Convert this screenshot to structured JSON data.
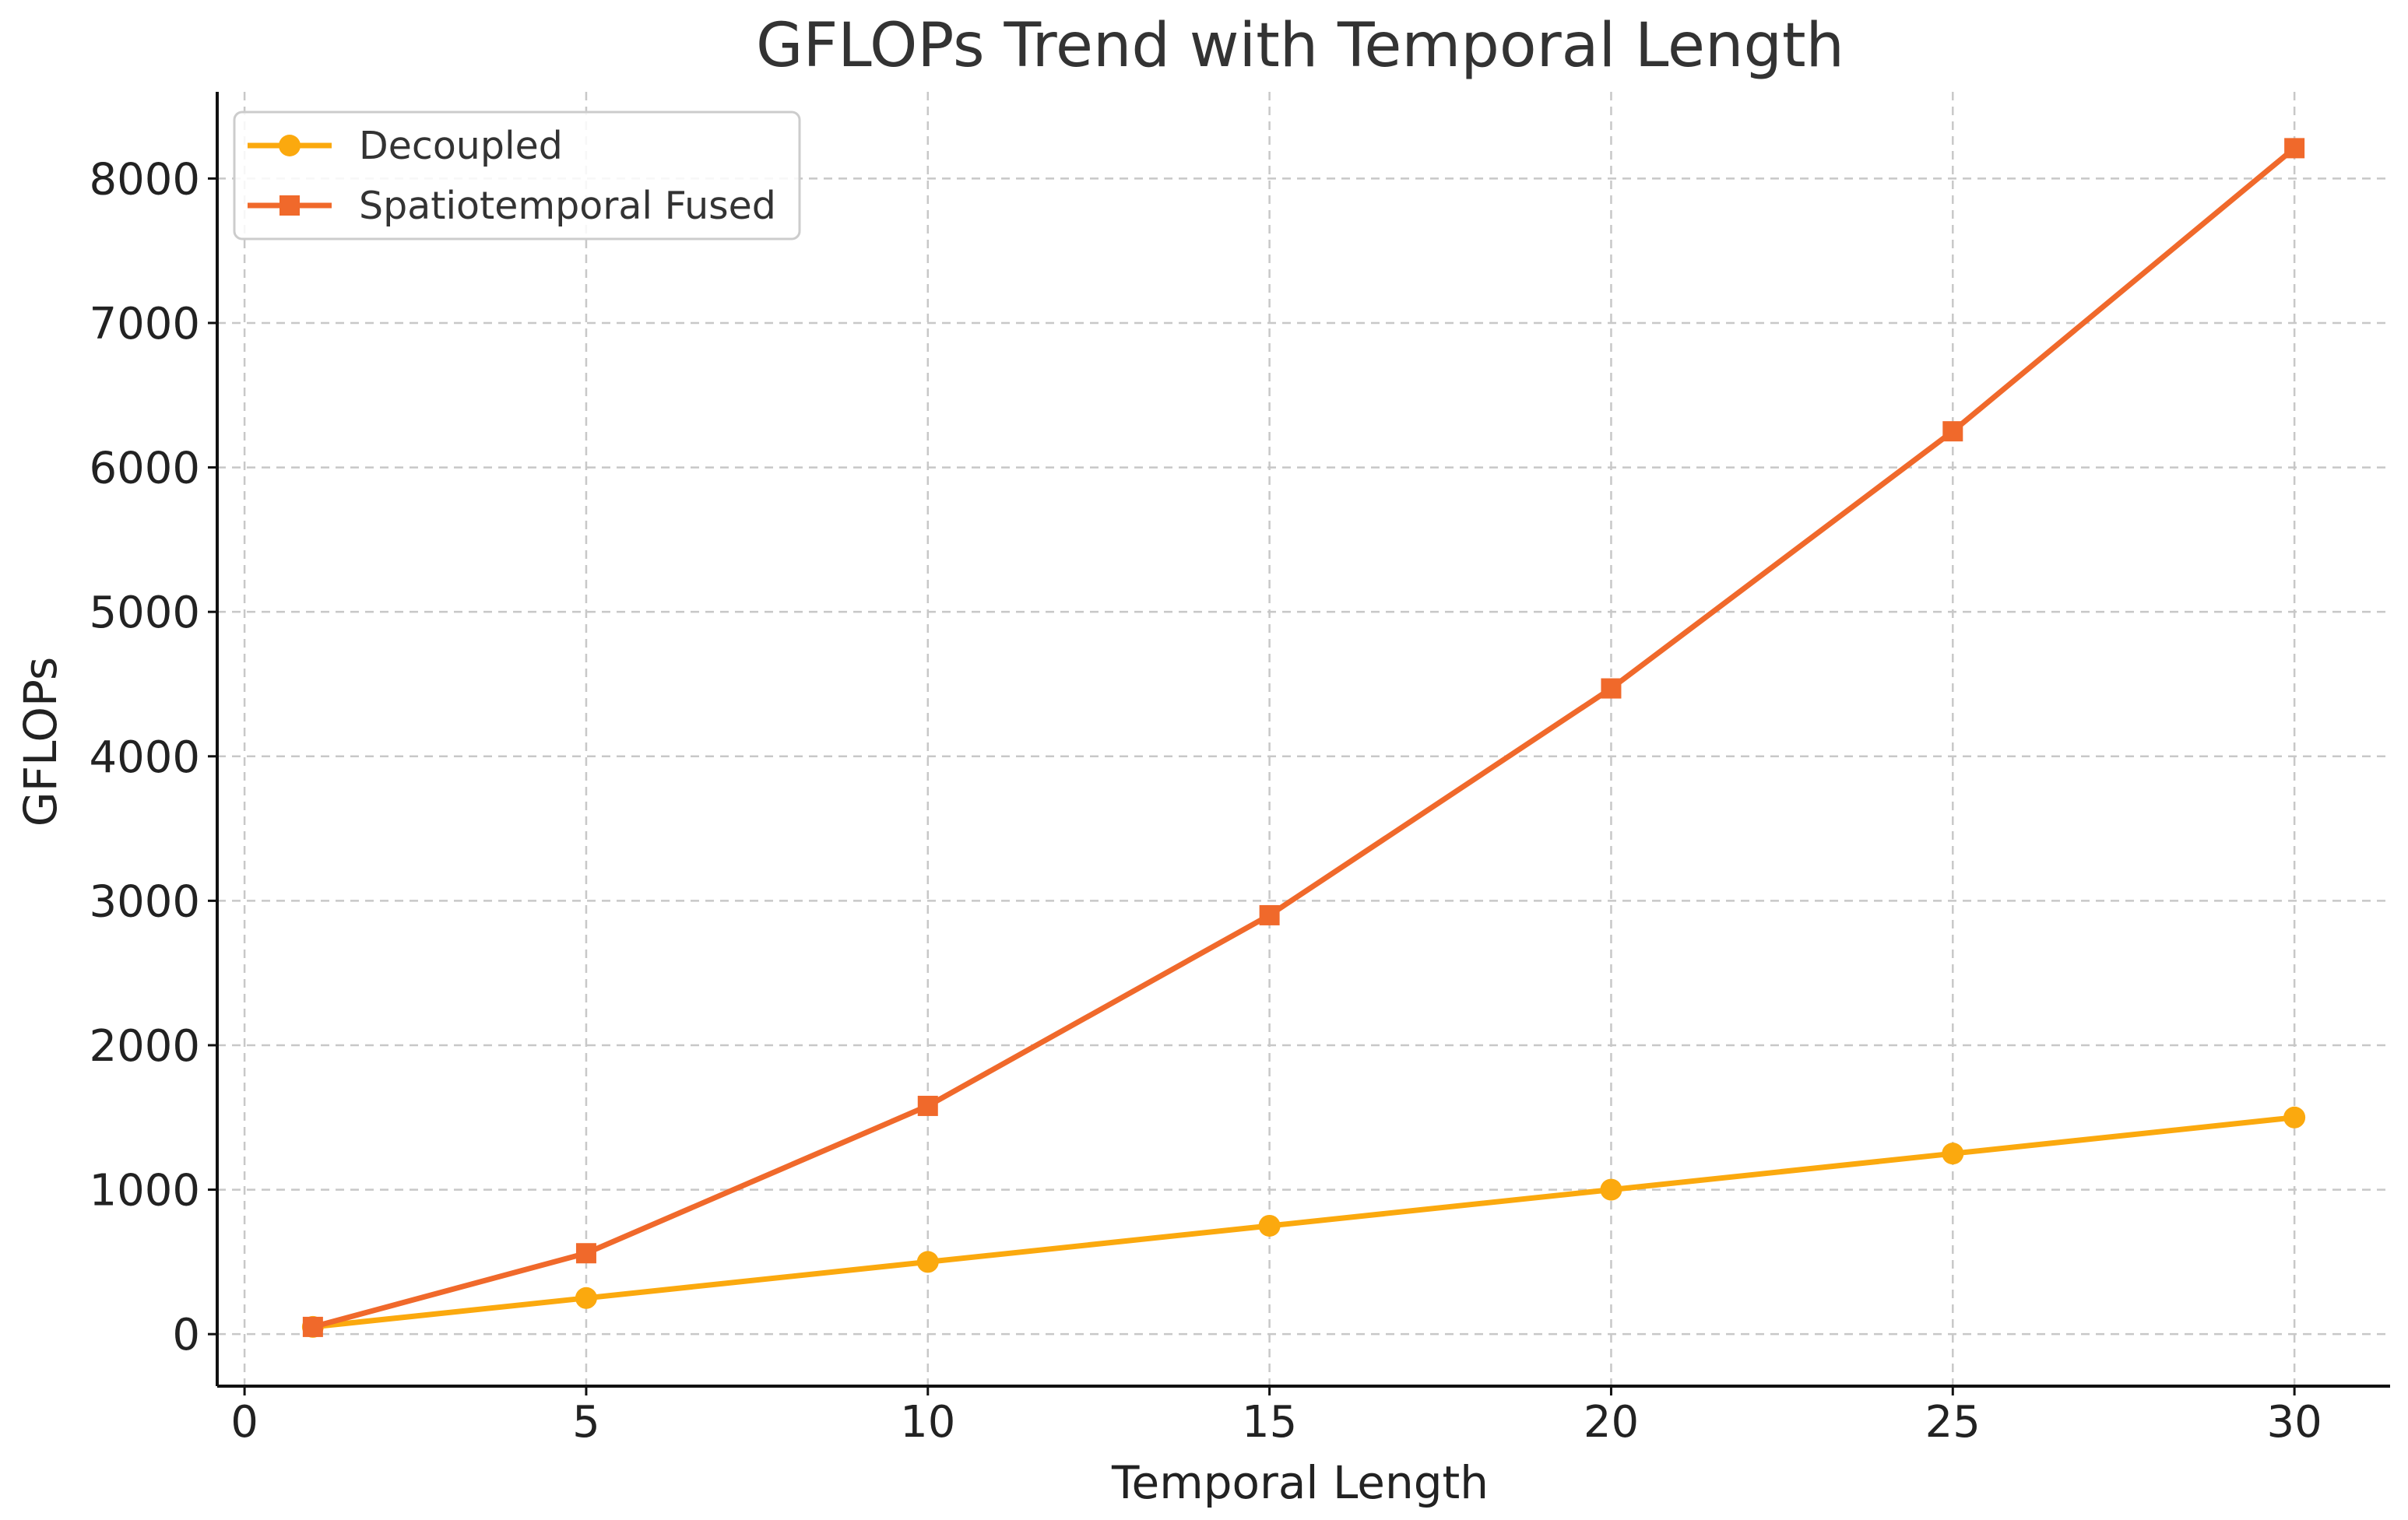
{
  "chart_data": {
    "type": "line",
    "title": "GFLOPs Trend with Temporal Length",
    "xlabel": "Temporal Length",
    "ylabel": "GFLOPs",
    "xlim": [
      -0.4,
      31.4
    ],
    "ylim": [
      -360,
      8600
    ],
    "xticks": [
      0,
      5,
      10,
      15,
      20,
      25,
      30
    ],
    "yticks": [
      0,
      1000,
      2000,
      3000,
      4000,
      5000,
      6000,
      7000,
      8000
    ],
    "grid": true,
    "legend_position": "top-left",
    "x": [
      1,
      5,
      10,
      15,
      20,
      25,
      30
    ],
    "series": [
      {
        "name": "Decoupled",
        "marker": "circle",
        "color": "#FBA90E",
        "values": [
          50,
          250,
          500,
          750,
          1000,
          1250,
          1500
        ]
      },
      {
        "name": "Spatiotemporal Fused",
        "marker": "square",
        "color": "#F0692B",
        "values": [
          50,
          560,
          1580,
          2900,
          4470,
          6250,
          8210
        ]
      }
    ]
  }
}
